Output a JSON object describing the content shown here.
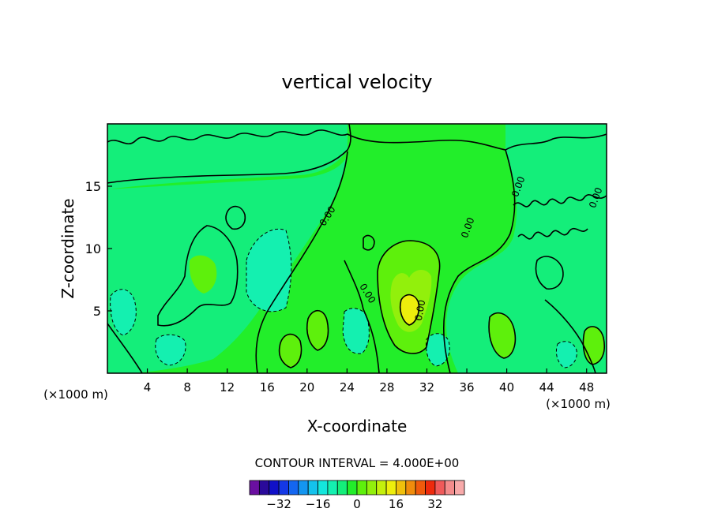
{
  "chart_data": {
    "type": "heatmap",
    "title": "vertical velocity",
    "xlabel": "X-coordinate",
    "ylabel": "Z-coordinate",
    "x_unit": "(×1000 m)",
    "x_ticks": [
      4,
      8,
      12,
      16,
      20,
      24,
      28,
      32,
      36,
      40,
      44,
      48
    ],
    "y_ticks": [
      5,
      10,
      15
    ],
    "xlim": [
      0,
      50
    ],
    "ylim": [
      0,
      20
    ],
    "contour_interval_text": "CONTOUR INTERVAL = 4.000E+00",
    "contour_interval": 4.0,
    "contour_labels": [
      "0.00",
      "0.00",
      "0.00",
      "0.00",
      "0.00",
      "0.00"
    ],
    "colorbar": {
      "tick_labels": [
        "-32",
        "-16",
        "0",
        "16",
        "32"
      ],
      "tick_values": [
        -32,
        -16,
        0,
        16,
        32
      ],
      "levels": [
        -36,
        -32,
        -28,
        -24,
        -20,
        -16,
        -12,
        -8,
        -4,
        0,
        4,
        8,
        12,
        16,
        20,
        24,
        28,
        32,
        36
      ],
      "colors": [
        "#6a0fa0",
        "#2a0a9a",
        "#1010c8",
        "#1438e6",
        "#1466f0",
        "#1496f0",
        "#14c2ec",
        "#14e6dc",
        "#14f0b0",
        "#14ee7a",
        "#22ee2a",
        "#5ef00c",
        "#92f00c",
        "#c4f00c",
        "#eeee0c",
        "#f0c00c",
        "#f08c0c",
        "#f05a0c",
        "#ee2a0c",
        "#f05a5a",
        "#f48c8c",
        "#f8aaaa"
      ]
    },
    "background_color": "#22ee2a",
    "line_color": "#000000"
  }
}
